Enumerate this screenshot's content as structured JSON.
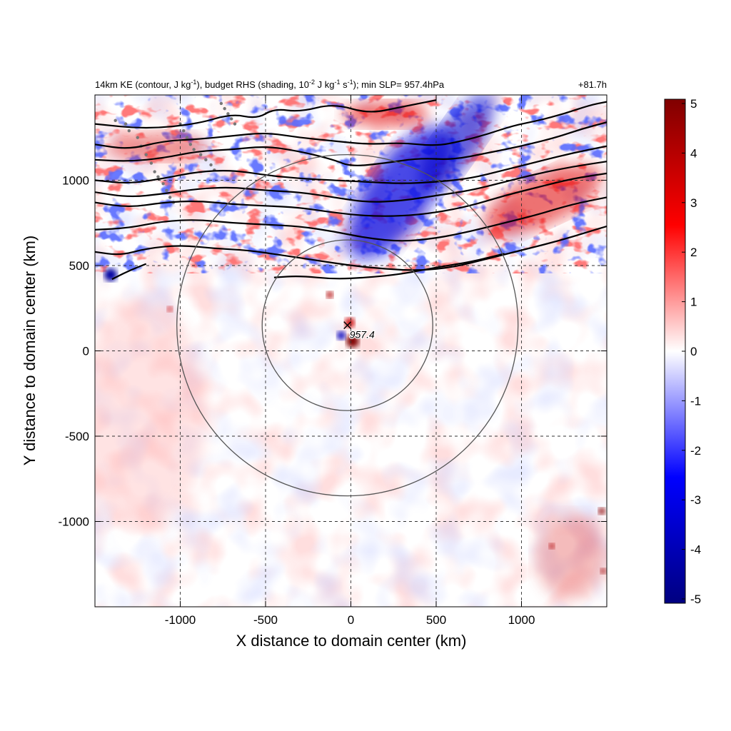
{
  "chart_data": {
    "type": "heatmap",
    "title_left_parts": {
      "p1": "14km KE (contour, J kg",
      "s1": "-1",
      "p2": "), budget RHS (shading, 10",
      "s2": "-2",
      "p3": " J kg",
      "s3": "-1",
      "p4": " s",
      "s4": "-1",
      "p5": "); min SLP= 957.4hPa"
    },
    "title_right": "+81.7h",
    "xlabel": "X distance to domain center (km)",
    "ylabel": "Y distance to domain center (km)",
    "xlim": [
      -1500,
      1500
    ],
    "ylim": [
      -1500,
      1500
    ],
    "x_ticks": [
      -1000,
      -500,
      0,
      500,
      1000
    ],
    "y_ticks": [
      1000,
      500,
      0,
      -500,
      -1000
    ],
    "grid": "dashed",
    "colorbar": {
      "range": [
        -5,
        5
      ],
      "ticks": [
        5,
        4,
        3,
        2,
        1,
        0,
        -1,
        -2,
        -3,
        -4,
        -5
      ],
      "colors": [
        "#000080",
        "#0000ff",
        "#ffffff",
        "#ff0000",
        "#800000"
      ]
    },
    "storm_center": {
      "x": -20,
      "y": 150,
      "label": "957.4"
    },
    "range_rings_km": [
      500,
      1000
    ],
    "contour_lines": [
      [
        [
          -1500,
          1330
        ],
        [
          -1200,
          1300
        ],
        [
          -900,
          1330
        ],
        [
          -700,
          1390
        ],
        [
          -550,
          1360
        ],
        [
          -450,
          1420
        ],
        [
          -300,
          1400
        ],
        [
          -100,
          1450
        ],
        [
          100,
          1390
        ],
        [
          300,
          1430
        ],
        [
          500,
          1470
        ]
      ],
      [
        [
          -1500,
          1210
        ],
        [
          -1300,
          1180
        ],
        [
          -1100,
          1230
        ],
        [
          -900,
          1240
        ],
        [
          -700,
          1260
        ],
        [
          -500,
          1280
        ],
        [
          -300,
          1250
        ],
        [
          -100,
          1230
        ],
        [
          100,
          1210
        ],
        [
          300,
          1220
        ],
        [
          500,
          1200
        ],
        [
          650,
          1230
        ],
        [
          800,
          1270
        ],
        [
          950,
          1320
        ],
        [
          1100,
          1350
        ],
        [
          1250,
          1390
        ],
        [
          1400,
          1440
        ],
        [
          1500,
          1460
        ]
      ],
      [
        [
          -1500,
          1120
        ],
        [
          -1300,
          1110
        ],
        [
          -1100,
          1130
        ],
        [
          -900,
          1170
        ],
        [
          -700,
          1180
        ],
        [
          -500,
          1200
        ],
        [
          -300,
          1170
        ],
        [
          -100,
          1120
        ],
        [
          0,
          1080
        ],
        [
          200,
          1100
        ],
        [
          400,
          1130
        ],
        [
          600,
          1120
        ],
        [
          800,
          1160
        ],
        [
          1000,
          1200
        ],
        [
          1200,
          1250
        ],
        [
          1350,
          1300
        ],
        [
          1500,
          1340
        ]
      ],
      [
        [
          -1500,
          1000
        ],
        [
          -1300,
          980
        ],
        [
          -1100,
          1010
        ],
        [
          -900,
          1050
        ],
        [
          -700,
          1060
        ],
        [
          -500,
          1030
        ],
        [
          -300,
          1010
        ],
        [
          -100,
          1000
        ],
        [
          100,
          990
        ],
        [
          300,
          980
        ],
        [
          500,
          990
        ],
        [
          700,
          1010
        ],
        [
          900,
          1060
        ],
        [
          1100,
          1110
        ],
        [
          1300,
          1160
        ],
        [
          1500,
          1200
        ]
      ],
      [
        [
          -1500,
          930
        ],
        [
          -1300,
          900
        ],
        [
          -1100,
          920
        ],
        [
          -900,
          950
        ],
        [
          -700,
          960
        ],
        [
          -500,
          940
        ],
        [
          -300,
          930
        ],
        [
          -100,
          900
        ],
        [
          100,
          870
        ],
        [
          300,
          880
        ],
        [
          500,
          910
        ],
        [
          700,
          940
        ],
        [
          900,
          990
        ],
        [
          1100,
          1040
        ],
        [
          1300,
          1080
        ],
        [
          1500,
          1110
        ]
      ],
      [
        [
          -1500,
          870
        ],
        [
          -1300,
          840
        ],
        [
          -1100,
          870
        ],
        [
          -900,
          880
        ],
        [
          -700,
          860
        ],
        [
          -500,
          850
        ],
        [
          -300,
          840
        ],
        [
          -100,
          810
        ],
        [
          100,
          790
        ],
        [
          300,
          790
        ],
        [
          500,
          810
        ],
        [
          700,
          850
        ],
        [
          900,
          910
        ],
        [
          1100,
          960
        ],
        [
          1300,
          1010
        ],
        [
          1500,
          1040
        ]
      ],
      [
        [
          -1500,
          710
        ],
        [
          -1300,
          720
        ],
        [
          -1100,
          760
        ],
        [
          -900,
          770
        ],
        [
          -700,
          750
        ],
        [
          -500,
          740
        ],
        [
          -300,
          730
        ],
        [
          -100,
          700
        ],
        [
          100,
          660
        ],
        [
          300,
          640
        ],
        [
          500,
          660
        ],
        [
          700,
          700
        ],
        [
          900,
          750
        ],
        [
          1100,
          800
        ],
        [
          1300,
          860
        ],
        [
          1500,
          900
        ]
      ],
      [
        [
          -1500,
          580
        ],
        [
          -1350,
          560
        ],
        [
          -1200,
          600
        ],
        [
          -1000,
          620
        ],
        [
          -800,
          600
        ],
        [
          -600,
          590
        ],
        [
          -400,
          560
        ],
        [
          -200,
          530
        ],
        [
          0,
          500
        ],
        [
          200,
          480
        ],
        [
          400,
          470
        ],
        [
          600,
          490
        ],
        [
          800,
          540
        ],
        [
          1000,
          590
        ],
        [
          1200,
          640
        ],
        [
          1400,
          700
        ],
        [
          1500,
          730
        ]
      ],
      [
        [
          -1400,
          420
        ],
        [
          -1300,
          470
        ],
        [
          -1200,
          510
        ]
      ],
      [
        [
          -450,
          430
        ],
        [
          -300,
          440
        ],
        [
          -100,
          420
        ],
        [
          100,
          430
        ],
        [
          300,
          450
        ],
        [
          500,
          490
        ],
        [
          700,
          520
        ],
        [
          900,
          570
        ]
      ]
    ],
    "coastline_points": [
      [
        -1380,
        1350
      ],
      [
        -1320,
        1330
      ],
      [
        -1300,
        1290
      ],
      [
        -1250,
        1250
      ],
      [
        -1230,
        1200
      ],
      [
        -1200,
        1150
      ],
      [
        -1170,
        1100
      ],
      [
        -1150,
        1050
      ],
      [
        -1130,
        1020
      ],
      [
        -1100,
        980
      ],
      [
        -1080,
        940
      ],
      [
        -1060,
        900
      ],
      [
        -1040,
        870
      ],
      [
        -1000,
        1330
      ],
      [
        -980,
        1290
      ],
      [
        -960,
        1250
      ],
      [
        -940,
        1210
      ],
      [
        -920,
        1180
      ],
      [
        -880,
        1150
      ],
      [
        -850,
        1120
      ],
      [
        -820,
        1090
      ],
      [
        -800,
        1060
      ],
      [
        -760,
        1450
      ],
      [
        -740,
        1420
      ],
      [
        -720,
        1390
      ],
      [
        -700,
        1360
      ],
      [
        -680,
        1330
      ]
    ]
  }
}
